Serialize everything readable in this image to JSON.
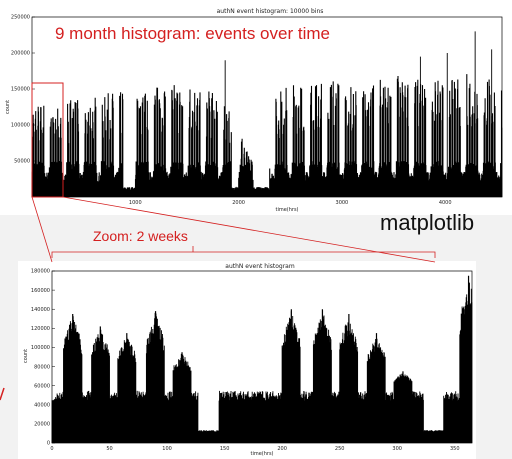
{
  "annotations": {
    "headline": "9 month histogram: events over time",
    "zoom_label": "Zoom: 2 weeks",
    "library": "matplotlib",
    "accent_color": "#d42020"
  },
  "chart_data": [
    {
      "type": "bar",
      "title": "authN event histogram: 10000 bins",
      "xlabel": "time(hrs)",
      "ylabel": "count",
      "xlim": [
        0,
        4550
      ],
      "ylim": [
        0,
        250000
      ],
      "xticks": [
        1000,
        2000,
        3000,
        4000
      ],
      "yticks": [
        50000,
        100000,
        150000,
        200000,
        250000
      ],
      "grid": false,
      "legend": "none",
      "bar_color": "#000000",
      "zoom_window": [
        0,
        360
      ],
      "description_series": {
        "name": "",
        "weekly_peaks": [
          {
            "x": 100,
            "y": 130000
          },
          {
            "x": 300,
            "y": 135000
          },
          {
            "x": 600,
            "y": 140000
          },
          {
            "x": 900,
            "y": 150000
          },
          {
            "x": 1250,
            "y": 155000
          },
          {
            "x": 1500,
            "y": 160000
          },
          {
            "x": 1850,
            "y": 140000
          },
          {
            "x": 2100,
            "y": 60000
          },
          {
            "x": 2400,
            "y": 150000
          },
          {
            "x": 2650,
            "y": 165000
          },
          {
            "x": 2900,
            "y": 165000
          },
          {
            "x": 3200,
            "y": 150000
          },
          {
            "x": 3500,
            "y": 175000
          },
          {
            "x": 3750,
            "y": 165000
          },
          {
            "x": 4000,
            "y": 160000
          },
          {
            "x": 4250,
            "y": 175000
          },
          {
            "x": 4450,
            "y": 165000
          }
        ],
        "spikes": [
          {
            "x": 1870,
            "y": 190000
          },
          {
            "x": 3760,
            "y": 195000
          },
          {
            "x": 4020,
            "y": 200000
          },
          {
            "x": 4290,
            "y": 230000
          },
          {
            "x": 4450,
            "y": 205000
          }
        ],
        "gaps": [
          [
            880,
            1000
          ],
          [
            1930,
            2000
          ],
          [
            2140,
            2300
          ]
        ],
        "baseline": 35000
      }
    },
    {
      "type": "bar",
      "title": "authN event histogram",
      "xlabel": "time(hrs)",
      "ylabel": "count",
      "xlim": [
        0,
        365
      ],
      "ylim": [
        0,
        180000
      ],
      "xticks": [
        0,
        50,
        100,
        150,
        200,
        250,
        300,
        350
      ],
      "yticks": [
        0,
        20000,
        40000,
        60000,
        80000,
        100000,
        120000,
        140000,
        160000,
        180000
      ],
      "grid": false,
      "legend": "none",
      "bar_color": "#000000",
      "day_peaks": [
        {
          "x": 18,
          "y": 135000
        },
        {
          "x": 42,
          "y": 122000
        },
        {
          "x": 65,
          "y": 115000
        },
        {
          "x": 90,
          "y": 138000
        },
        {
          "x": 113,
          "y": 95000
        },
        {
          "x": 208,
          "y": 140000
        },
        {
          "x": 235,
          "y": 140000
        },
        {
          "x": 258,
          "y": 135000
        },
        {
          "x": 282,
          "y": 115000
        },
        {
          "x": 305,
          "y": 75000
        },
        {
          "x": 362,
          "y": 175000
        }
      ],
      "night_level": 52000,
      "weekend_gaps": [
        {
          "from": 127,
          "to": 145,
          "y": 12000
        },
        {
          "from": 323,
          "to": 340,
          "y": 12000
        }
      ]
    }
  ]
}
